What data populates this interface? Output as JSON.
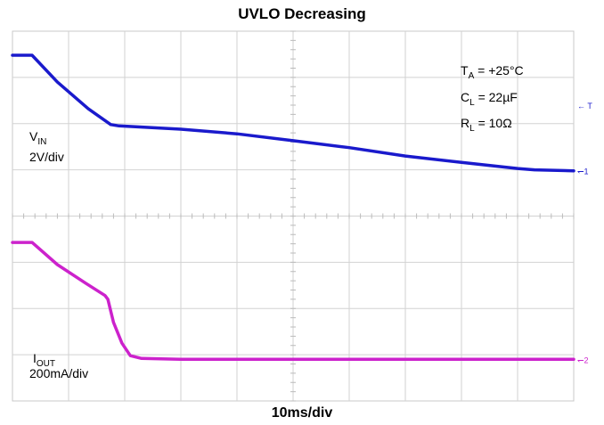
{
  "chart_data": {
    "type": "line",
    "title": "UVLO Decreasing",
    "xlabel": "10ms/div",
    "ylabel": "",
    "grid": true,
    "divisions": {
      "x": 10,
      "y": 8
    },
    "xlim": [
      0,
      10
    ],
    "x_unit": "div",
    "conditions": [
      {
        "sym": "T",
        "sub": "A",
        "val": " = +25°C"
      },
      {
        "sym": "C",
        "sub": "L",
        "val": " = 22µF"
      },
      {
        "sym": "R",
        "sub": "L",
        "val": " = 10Ω"
      }
    ],
    "series": [
      {
        "name_main": "V",
        "name_sub": "IN",
        "scale": "2V/div",
        "color": "#1a1acc",
        "ground_marker": "1",
        "x": [
          0,
          0.35,
          0.8,
          1.35,
          1.75,
          1.9,
          3,
          4,
          5,
          6,
          7,
          8,
          9,
          9.3,
          10
        ],
        "y": [
          7.48,
          7.48,
          6.9,
          6.32,
          5.98,
          5.95,
          5.88,
          5.78,
          5.63,
          5.48,
          5.3,
          5.16,
          5.03,
          5.0,
          4.98
        ]
      },
      {
        "name_main": "I",
        "name_sub": "OUT",
        "scale": "200mA/div",
        "color": "#cc22cc",
        "ground_marker": "2",
        "x": [
          0,
          0.35,
          0.8,
          1.3,
          1.65,
          1.7,
          1.8,
          1.95,
          2.1,
          2.3,
          3,
          5,
          8,
          10
        ],
        "y": [
          3.43,
          3.43,
          2.95,
          2.55,
          2.28,
          2.2,
          1.7,
          1.25,
          0.98,
          0.92,
          0.9,
          0.9,
          0.9,
          0.9
        ]
      }
    ],
    "trigger_marker": "T"
  }
}
